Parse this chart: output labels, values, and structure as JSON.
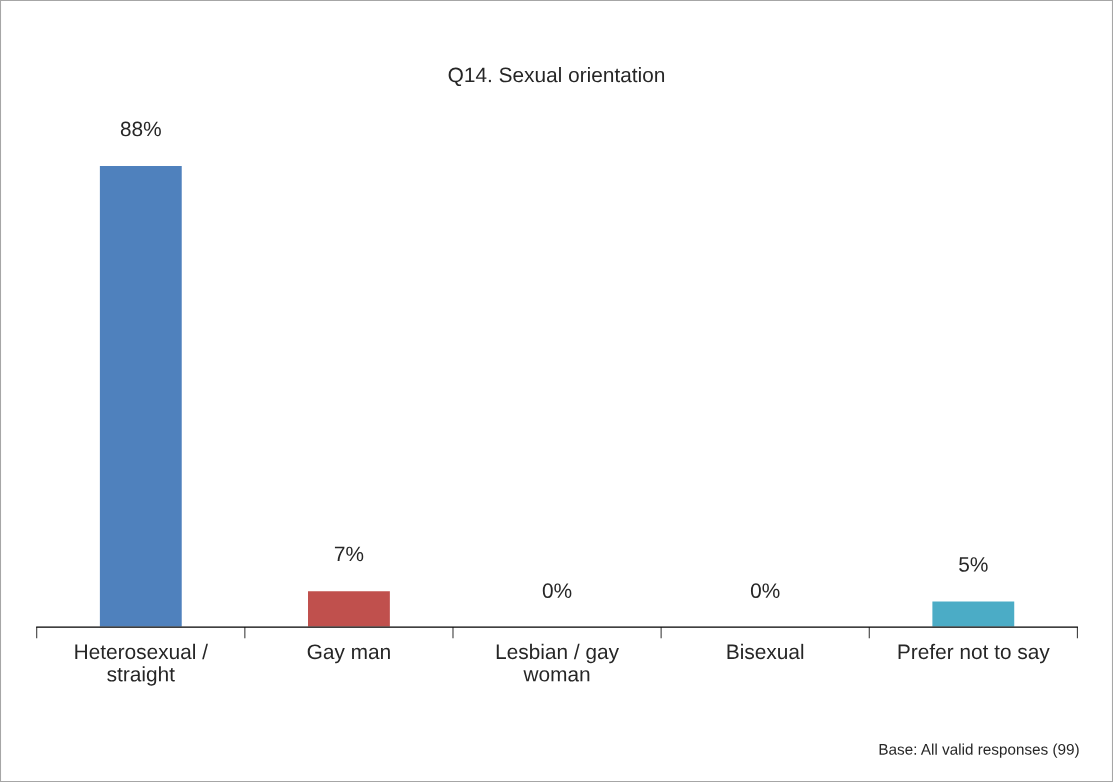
{
  "chart_data": {
    "type": "bar",
    "title": "Q14. Sexual orientation",
    "categories": [
      "Heterosexual /\nstraight",
      "Gay man",
      "Lesbian / gay\nwoman",
      "Bisexual",
      "Prefer not to say"
    ],
    "values": [
      88,
      7,
      0,
      0,
      5
    ],
    "value_labels": [
      "88%",
      "7%",
      "0%",
      "0%",
      "5%"
    ],
    "colors": [
      "#4f81bd",
      "#c0504d",
      null,
      null,
      "#4bacc6"
    ],
    "grid": false,
    "legend": false,
    "annotations": [
      "Base: All valid responses (99)"
    ]
  }
}
